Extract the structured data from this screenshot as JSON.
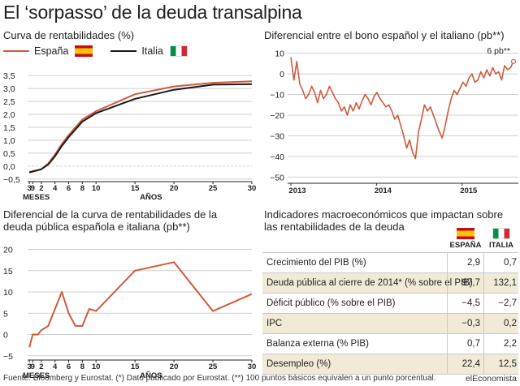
{
  "title": "El ‘sorpasso’ de la deuda transalpina",
  "colors": {
    "spain": "#cf5a3c",
    "italy": "#1a1a1a",
    "grid": "#cfcfcf",
    "band": "#f1ead6"
  },
  "chart_data": [
    {
      "id": "curve",
      "type": "line",
      "title": "Curva de rentabilidades (%)",
      "legend": [
        "España",
        "Italia"
      ],
      "x_ticks": [
        "3",
        "9",
        "2",
        "4",
        "6",
        "8",
        "10",
        "15",
        "20",
        "25",
        "30"
      ],
      "x_group_labels": [
        "MESES",
        "AÑOS"
      ],
      "y_ticks": [
        "3,5",
        "3,0",
        "2,5",
        "2,0",
        "1,5",
        "1,0",
        "0,5",
        "0,0",
        "−0,5"
      ],
      "ylim": [
        -0.6,
        3.6
      ],
      "series": [
        {
          "name": "España",
          "x": [
            0.25,
            0.75,
            2,
            3,
            4,
            5,
            6,
            7,
            8,
            10,
            15,
            20,
            25,
            30
          ],
          "values": [
            -0.25,
            -0.22,
            -0.12,
            0.1,
            0.45,
            0.85,
            1.2,
            1.5,
            1.8,
            2.12,
            2.78,
            3.08,
            3.22,
            3.28
          ]
        },
        {
          "name": "Italia",
          "x": [
            0.25,
            0.75,
            2,
            3,
            4,
            5,
            6,
            7,
            8,
            10,
            15,
            20,
            25,
            30
          ],
          "values": [
            -0.24,
            -0.2,
            -0.12,
            0.06,
            0.38,
            0.78,
            1.12,
            1.42,
            1.72,
            2.05,
            2.6,
            2.95,
            3.15,
            3.17
          ]
        }
      ]
    },
    {
      "id": "spread_ts",
      "type": "line",
      "title": "Diferencial entre el bono español y el italiano (pb**)",
      "y_ticks": [
        "10",
        "0",
        "−10",
        "−20",
        "−30",
        "−40",
        "−50"
      ],
      "ylim": [
        -53,
        13
      ],
      "x_ticks": [
        "2013",
        "2014",
        "2015"
      ],
      "annotation": "6 pb**",
      "series": [
        {
          "name": "Diferencial",
          "x_start": 2013.0,
          "x_end": 2015.6,
          "values": [
            8,
            -3,
            6,
            -5,
            -8,
            -12,
            -10,
            -6,
            -9,
            -14,
            -8,
            -12,
            -10,
            -6,
            -9,
            -12,
            -14,
            -18,
            -16,
            -20,
            -15,
            -18,
            -14,
            -17,
            -13,
            -10,
            -12,
            -15,
            -11,
            -9,
            -12,
            -14,
            -16,
            -15,
            -18,
            -22,
            -20,
            -25,
            -30,
            -36,
            -32,
            -38,
            -41,
            -28,
            -22,
            -15,
            -18,
            -16,
            -20,
            -24,
            -28,
            -31,
            -25,
            -18,
            -12,
            -8,
            -10,
            -7,
            -4,
            -6,
            -2,
            0,
            -4,
            -3,
            1,
            -2,
            2,
            -1,
            3,
            0,
            1,
            -3,
            4,
            2,
            3,
            6
          ]
        }
      ]
    },
    {
      "id": "spread_curve",
      "type": "line",
      "title": "Diferencial de la curva de rentabilidades de la deuda pública española e italiana (pb**)",
      "x_ticks": [
        "3",
        "9",
        "2",
        "4",
        "6",
        "8",
        "10",
        "15",
        "20",
        "25",
        "30"
      ],
      "x_group_labels": [
        "MESES",
        "AÑOS"
      ],
      "y_ticks": [
        "20",
        "15",
        "10",
        "5",
        "0",
        "−5"
      ],
      "ylim": [
        -6,
        22
      ],
      "series": [
        {
          "name": "Diferencial",
          "x": [
            0.25,
            0.75,
            1.5,
            2,
            3,
            4,
            5,
            6,
            7,
            8,
            9,
            10,
            15,
            20,
            25,
            30
          ],
          "values": [
            -3,
            0,
            0,
            1,
            2,
            6,
            10,
            5,
            2,
            2,
            6,
            5.5,
            15,
            17,
            5.5,
            9.5
          ]
        }
      ]
    }
  ],
  "table": {
    "title": "Indicadores macroeconómicos que impactan sobre las rentabilidades de la deuda",
    "col1": "ESPAÑA",
    "col2": "ITALIA",
    "rows": [
      {
        "label": "Crecimiento del PIB (%)",
        "es": "2,9",
        "it": "0,7"
      },
      {
        "label": "Deuda pública al cierre de 2014* (% sobre el PIB)",
        "es": "97,7",
        "it": "132,1"
      },
      {
        "label": "Déficit público (% sobre el PIB)",
        "es": "−4,5",
        "it": "−2,7"
      },
      {
        "label": "IPC",
        "es": "−0,3",
        "it": "0,2"
      },
      {
        "label": "Balanza externa (% PIB)",
        "es": "0,7",
        "it": "2,2"
      },
      {
        "label": "Desempleo (%)",
        "es": "22,4",
        "it": "12,5"
      }
    ]
  },
  "footer": "Fuente: Bloomberg y Eurostat. (*) Dato publicado por Eurostat. (**) 100 puntos básicos equivalen a un punto porcentual.",
  "brand": "elEconomista"
}
